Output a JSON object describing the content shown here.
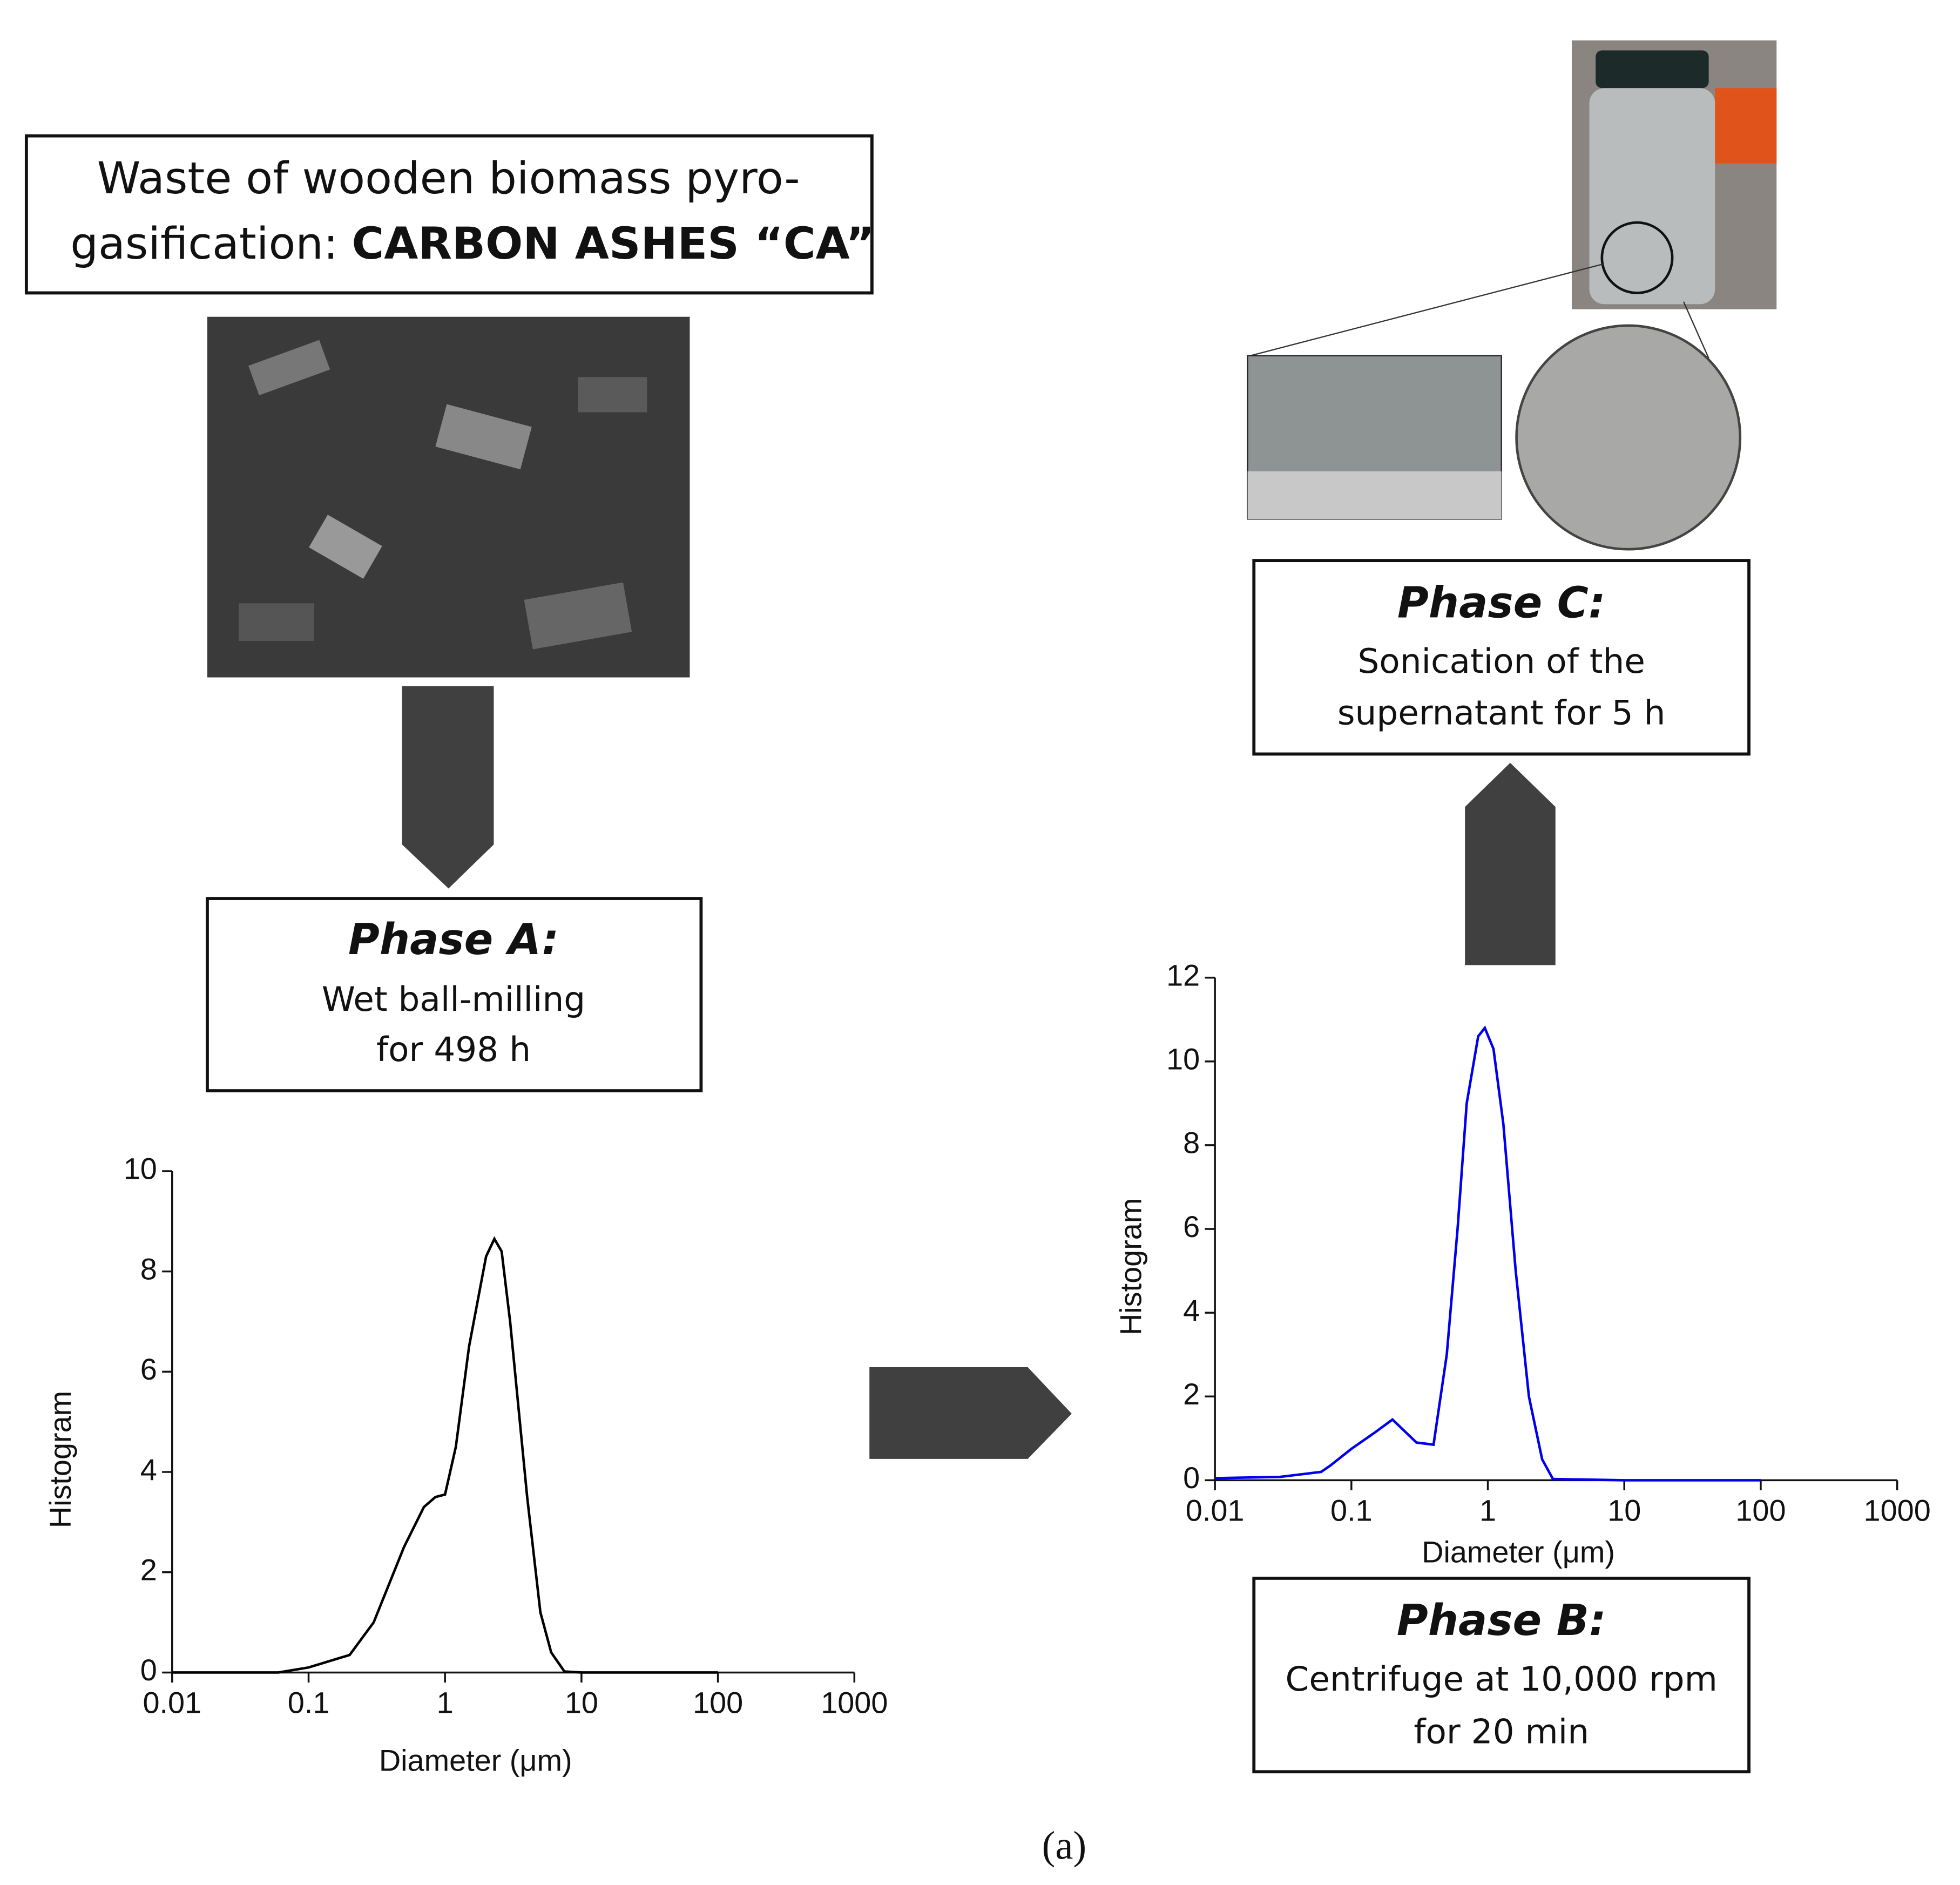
{
  "intro": {
    "line1": "Waste of wooden biomass pyro-",
    "line2": "gasification:",
    "line2_bold": "CARBON ASHES “CA”"
  },
  "phases": [
    {
      "title": "Phase A:",
      "lines": [
        "Wet ball-milling",
        "for 498 h"
      ]
    },
    {
      "title": "Phase B:",
      "lines": [
        "Centrifuge at 10,000 rpm",
        "for 20 min"
      ]
    },
    {
      "title": "Phase C:",
      "lines": [
        "Sonication of the",
        "supernatant for 5 h"
      ]
    }
  ],
  "chart_data": [
    {
      "type": "line",
      "x_label": "Diameter (μm)",
      "y_label": "Histogram",
      "x_scale": "log",
      "xlim": [
        0.01,
        1000
      ],
      "xticks": [
        0.01,
        0.1,
        1,
        10,
        100,
        1000
      ],
      "ylim": [
        0,
        10
      ],
      "yticks": [
        0,
        2,
        4,
        6,
        8,
        10
      ],
      "series": [
        {
          "color": "#000000",
          "x": [
            0.01,
            0.06,
            0.1,
            0.2,
            0.3,
            0.5,
            0.7,
            0.85,
            1.0,
            1.2,
            1.5,
            2.0,
            2.3,
            2.6,
            3.0,
            4.0,
            5.0,
            6.0,
            7.5,
            10,
            100
          ],
          "values": [
            0,
            0,
            0.1,
            0.35,
            1.0,
            2.5,
            3.3,
            3.5,
            3.55,
            4.5,
            6.5,
            8.3,
            8.65,
            8.4,
            7.0,
            3.5,
            1.2,
            0.4,
            0.02,
            0,
            0
          ]
        }
      ]
    },
    {
      "type": "line",
      "x_label": "Diameter (μm)",
      "y_label": "Histogram",
      "x_scale": "log",
      "xlim": [
        0.01,
        1000
      ],
      "xticks": [
        0.01,
        0.1,
        1,
        10,
        100,
        1000
      ],
      "ylim": [
        0,
        12
      ],
      "yticks": [
        0,
        2,
        4,
        6,
        8,
        10,
        12
      ],
      "series": [
        {
          "color": "#0000ee",
          "x": [
            0.01,
            0.03,
            0.06,
            0.07,
            0.1,
            0.15,
            0.2,
            0.3,
            0.4,
            0.5,
            0.6,
            0.7,
            0.85,
            0.95,
            1.1,
            1.3,
            1.6,
            2.0,
            2.5,
            3.0,
            10,
            100
          ],
          "values": [
            0.05,
            0.08,
            0.2,
            0.35,
            0.75,
            1.15,
            1.45,
            0.9,
            0.85,
            3.0,
            6.0,
            9.0,
            10.6,
            10.8,
            10.3,
            8.5,
            5.0,
            2.0,
            0.5,
            0.03,
            0,
            0
          ]
        }
      ]
    }
  ],
  "caption": "(a)"
}
